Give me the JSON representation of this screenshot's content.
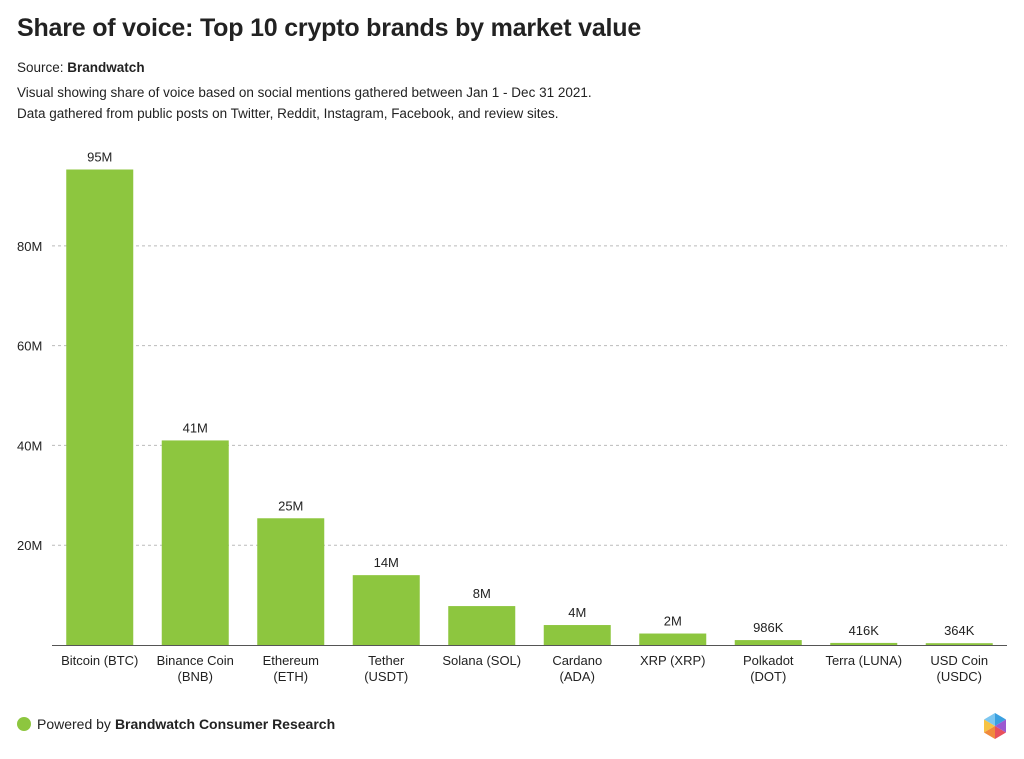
{
  "header": {
    "title": "Share of voice: Top 10 crypto brands by market value",
    "source_prefix": "Source:",
    "source_name": "Brandwatch",
    "description_line1": "Visual showing share of voice based on social mentions gathered between Jan 1 - Dec 31 2021.",
    "description_line2": "Data gathered from public posts on Twitter, Reddit, Instagram, Facebook, and review sites."
  },
  "footer": {
    "powered_prefix": "Powered by",
    "powered_name": "Brandwatch Consumer Research",
    "dot_color": "#8dc63f"
  },
  "colors": {
    "bar": "#8dc63f",
    "grid": "#bbbbbb",
    "axis": "#555555",
    "text": "#222222"
  },
  "chart_data": {
    "type": "bar",
    "title": "Share of voice: Top 10 crypto brands by market value",
    "xlabel": "",
    "ylabel": "",
    "grid": true,
    "ylim": [
      0,
      95000000
    ],
    "yticks": [
      {
        "value": 20000000,
        "label": "20M"
      },
      {
        "value": 40000000,
        "label": "40M"
      },
      {
        "value": 60000000,
        "label": "60M"
      },
      {
        "value": 80000000,
        "label": "80M"
      }
    ],
    "categories": [
      [
        "Bitcoin (BTC)"
      ],
      [
        "Binance Coin",
        "(BNB)"
      ],
      [
        "Ethereum",
        "(ETH)"
      ],
      [
        "Tether",
        "(USDT)"
      ],
      [
        "Solana (SOL)"
      ],
      [
        "Cardano",
        "(ADA)"
      ],
      [
        "XRP (XRP)"
      ],
      [
        "Polkadot",
        "(DOT)"
      ],
      [
        "Terra (LUNA)"
      ],
      [
        "USD Coin",
        "(USDC)"
      ]
    ],
    "values": [
      95300000,
      41000000,
      25400000,
      14000000,
      7800000,
      4000000,
      2300000,
      986000,
      416000,
      364000
    ],
    "data_labels": [
      "95M",
      "41M",
      "25M",
      "14M",
      "8M",
      "4M",
      "2M",
      "986K",
      "416K",
      "364K"
    ]
  }
}
